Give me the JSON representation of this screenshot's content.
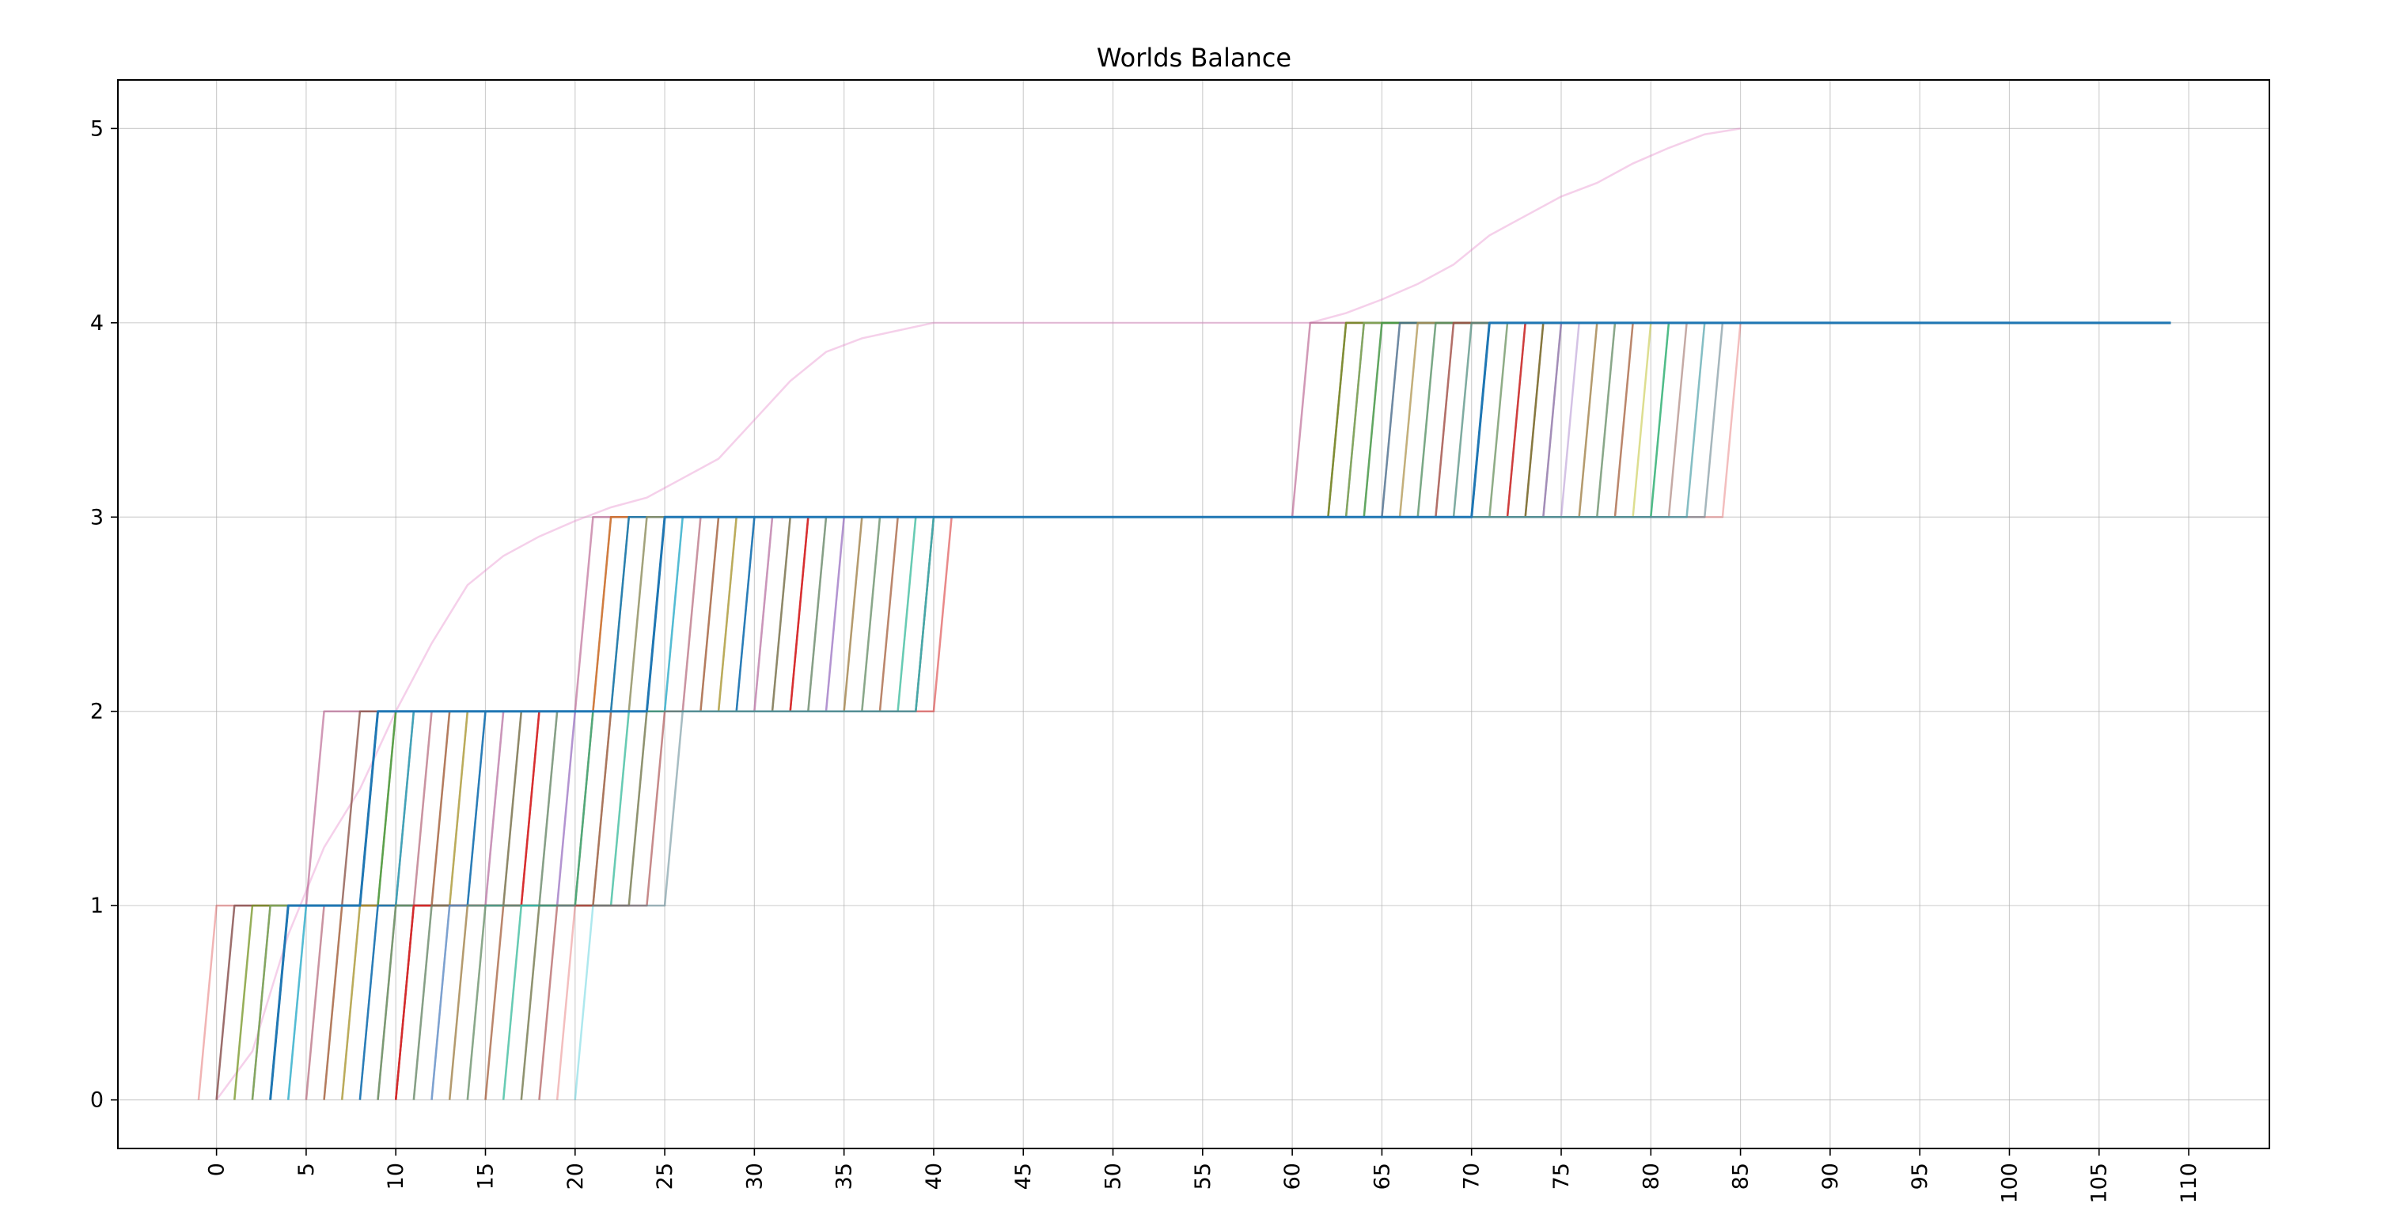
{
  "chart_data": {
    "type": "line",
    "title": "Worlds Balance",
    "xlabel": "",
    "ylabel": "",
    "xlim": [
      -5.5,
      114.5
    ],
    "ylim": [
      -0.25,
      5.25
    ],
    "x_ticks": [
      0,
      5,
      10,
      15,
      20,
      25,
      30,
      35,
      40,
      45,
      50,
      55,
      60,
      65,
      70,
      75,
      80,
      85,
      90,
      95,
      100,
      105,
      110
    ],
    "y_ticks": [
      0,
      1,
      2,
      3,
      4,
      5
    ],
    "x_tick_rotation": 90,
    "grid": true,
    "legend": "none",
    "x_end": 109,
    "palette": [
      "#1f77b4",
      "#ff7f0e",
      "#2ca02c",
      "#d62728",
      "#9467bd",
      "#8c564b",
      "#e377c2",
      "#7f7f7f",
      "#bcbd22",
      "#17becf",
      "#aec7e8",
      "#98df8a",
      "#ff9896",
      "#c5b0d5",
      "#c49c94"
    ],
    "series": [
      {
        "steps": [
          0,
          6,
          21,
          61
        ],
        "color": "#d62728",
        "alpha": 0.35
      },
      {
        "steps": [
          1,
          6,
          21,
          61
        ],
        "color": "#9467bd",
        "alpha": 0.35
      },
      {
        "steps": [
          1,
          8,
          22,
          63
        ],
        "color": "#8c564b",
        "alpha": 0.8
      },
      {
        "steps": [
          2,
          9,
          22,
          63
        ],
        "color": "#ff7f0e",
        "alpha": 0.5
      },
      {
        "steps": [
          2,
          9,
          23,
          63
        ],
        "color": "#2ca02c",
        "alpha": 0.5
      },
      {
        "steps": [
          3,
          9,
          23,
          64
        ],
        "color": "#1f77b4",
        "alpha": 0.9
      },
      {
        "steps": [
          3,
          10,
          24,
          64
        ],
        "color": "#bcbd22",
        "alpha": 0.6
      },
      {
        "steps": [
          4,
          10,
          24,
          65
        ],
        "color": "#7f7f7f",
        "alpha": 0.6
      },
      {
        "steps": [
          4,
          10,
          25,
          65
        ],
        "color": "#2ca02c",
        "alpha": 0.6
      },
      {
        "steps": [
          4,
          11,
          25,
          66
        ],
        "color": "#8c564b",
        "alpha": 0.6
      },
      {
        "steps": [
          5,
          11,
          26,
          66
        ],
        "color": "#1f77b4",
        "alpha": 0.5
      },
      {
        "steps": [
          5,
          11,
          26,
          67
        ],
        "color": "#17becf",
        "alpha": 0.5
      },
      {
        "steps": [
          6,
          12,
          27,
          67
        ],
        "color": "#ff7f0e",
        "alpha": 0.5
      },
      {
        "steps": [
          6,
          12,
          27,
          68
        ],
        "color": "#9467bd",
        "alpha": 0.5
      },
      {
        "steps": [
          7,
          13,
          28,
          68
        ],
        "color": "#2ca02c",
        "alpha": 0.5
      },
      {
        "steps": [
          7,
          13,
          28,
          69
        ],
        "color": "#d62728",
        "alpha": 0.5
      },
      {
        "steps": [
          8,
          14,
          29,
          69
        ],
        "color": "#8c564b",
        "alpha": 0.6
      },
      {
        "steps": [
          8,
          14,
          29,
          70
        ],
        "color": "#bcbd22",
        "alpha": 0.5
      },
      {
        "steps": [
          9,
          15,
          30,
          70
        ],
        "color": "#1f77b4",
        "alpha": 0.5
      },
      {
        "steps": [
          9,
          15,
          30,
          71
        ],
        "color": "#1f77b4",
        "alpha": 0.9
      },
      {
        "steps": [
          10,
          16,
          31,
          71
        ],
        "color": "#7f7f7f",
        "alpha": 0.6
      },
      {
        "steps": [
          10,
          16,
          31,
          72
        ],
        "color": "#e377c2",
        "alpha": 0.5
      },
      {
        "steps": [
          10,
          17,
          32,
          72
        ],
        "color": "#2ca02c",
        "alpha": 0.5
      },
      {
        "steps": [
          11,
          17,
          32,
          73
        ],
        "color": "#8c564b",
        "alpha": 0.6
      },
      {
        "steps": [
          11,
          18,
          33,
          73
        ],
        "color": "#d62728",
        "alpha": 0.8
      },
      {
        "steps": [
          11,
          18,
          33,
          74
        ],
        "color": "#d62728",
        "alpha": 0.8
      },
      {
        "steps": [
          12,
          19,
          34,
          74
        ],
        "color": "#2ca02c",
        "alpha": 0.5
      },
      {
        "steps": [
          12,
          19,
          34,
          75
        ],
        "color": "#7f7f7f",
        "alpha": 0.6
      },
      {
        "steps": [
          13,
          20,
          35,
          75
        ],
        "color": "#9467bd",
        "alpha": 0.5
      },
      {
        "steps": [
          13,
          20,
          35,
          76
        ],
        "color": "#9467bd",
        "alpha": 0.4
      },
      {
        "steps": [
          14,
          21,
          36,
          77
        ],
        "color": "#bcbd22",
        "alpha": 0.5
      },
      {
        "steps": [
          14,
          21,
          36,
          77
        ],
        "color": "#8c564b",
        "alpha": 0.5
      },
      {
        "steps": [
          15,
          21,
          37,
          78
        ],
        "color": "#2ca02c",
        "alpha": 0.5
      },
      {
        "steps": [
          15,
          22,
          37,
          78
        ],
        "color": "#7f7f7f",
        "alpha": 0.5
      },
      {
        "steps": [
          16,
          22,
          38,
          79
        ],
        "color": "#ff7f0e",
        "alpha": 0.4
      },
      {
        "steps": [
          16,
          22,
          38,
          79
        ],
        "color": "#8c564b",
        "alpha": 0.6
      },
      {
        "steps": [
          17,
          23,
          39,
          80
        ],
        "color": "#bcbd22",
        "alpha": 0.5
      },
      {
        "steps": [
          17,
          23,
          39,
          81
        ],
        "color": "#17becf",
        "alpha": 0.6
      },
      {
        "steps": [
          18,
          24,
          40,
          81
        ],
        "color": "#2ca02c",
        "alpha": 0.5
      },
      {
        "steps": [
          18,
          24,
          40,
          82
        ],
        "color": "#8c564b",
        "alpha": 0.5
      },
      {
        "steps": [
          19,
          25,
          40,
          83
        ],
        "color": "#7f7f7f",
        "alpha": 0.5
      },
      {
        "steps": [
          19,
          25,
          41,
          84
        ],
        "color": "#d62728",
        "alpha": 0.35
      },
      {
        "steps": [
          20,
          26,
          41,
          85
        ],
        "color": "#d62728",
        "alpha": 0.3
      },
      {
        "steps": [
          21,
          26,
          40,
          84
        ],
        "color": "#17becf",
        "alpha": 0.35
      },
      {
        "steps": [
          13,
          21,
          40,
          83
        ],
        "color": "#17becf",
        "alpha": 0.35
      },
      {
        "steps": [
          4,
          9,
          25,
          71
        ],
        "color": "#1f77b4",
        "alpha": 1.0,
        "width": 3
      }
    ],
    "mean_series": {
      "color": "#e377c2",
      "alpha": 0.35,
      "points": [
        [
          0,
          0
        ],
        [
          2,
          0.25
        ],
        [
          4,
          0.85
        ],
        [
          6,
          1.3
        ],
        [
          8,
          1.6
        ],
        [
          10,
          2.0
        ],
        [
          12,
          2.35
        ],
        [
          14,
          2.65
        ],
        [
          16,
          2.8
        ],
        [
          18,
          2.9
        ],
        [
          20,
          2.98
        ],
        [
          22,
          3.05
        ],
        [
          24,
          3.1
        ],
        [
          26,
          3.2
        ],
        [
          28,
          3.3
        ],
        [
          30,
          3.5
        ],
        [
          32,
          3.7
        ],
        [
          34,
          3.85
        ],
        [
          36,
          3.92
        ],
        [
          38,
          3.96
        ],
        [
          40,
          4.0
        ],
        [
          61,
          4.0
        ],
        [
          63,
          4.05
        ],
        [
          65,
          4.12
        ],
        [
          67,
          4.2
        ],
        [
          69,
          4.3
        ],
        [
          71,
          4.45
        ],
        [
          73,
          4.55
        ],
        [
          75,
          4.65
        ],
        [
          77,
          4.72
        ],
        [
          79,
          4.82
        ],
        [
          81,
          4.9
        ],
        [
          83,
          4.97
        ],
        [
          85,
          5.0
        ]
      ]
    }
  }
}
